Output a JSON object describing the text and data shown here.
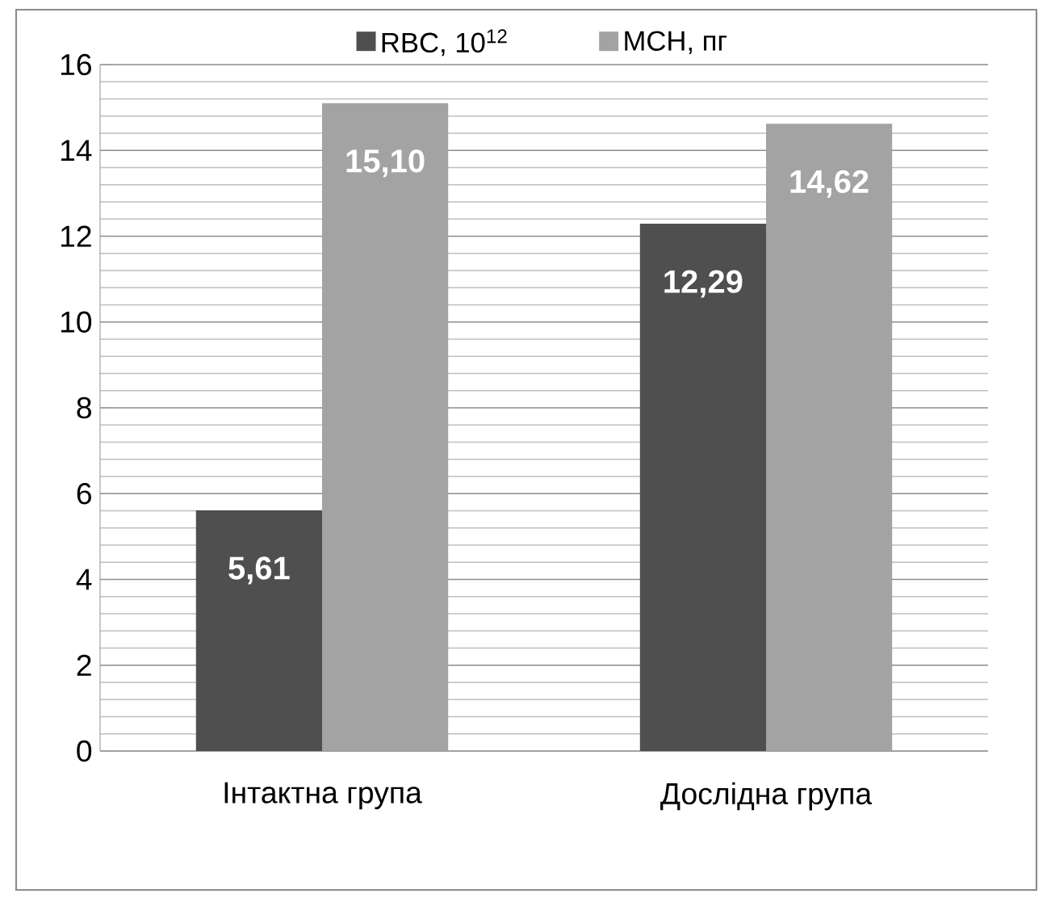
{
  "chart_data": {
    "type": "bar",
    "categories": [
      "Інтактна група",
      "Дослідна група"
    ],
    "series": [
      {
        "name": "RBC, 10$^{12}$",
        "color": "#4f4f4f",
        "values": [
          5.61,
          12.29
        ],
        "value_labels": [
          "5,61",
          "12,29"
        ]
      },
      {
        "name": "MCH, пг",
        "color": "#a3a3a3",
        "values": [
          15.1,
          14.62
        ],
        "value_labels": [
          "15,10",
          "14,62"
        ]
      }
    ],
    "ylim": [
      0,
      16
    ],
    "yticks": [
      0,
      2,
      4,
      6,
      8,
      10,
      12,
      14,
      16
    ],
    "grid": "y",
    "legend": "top"
  }
}
